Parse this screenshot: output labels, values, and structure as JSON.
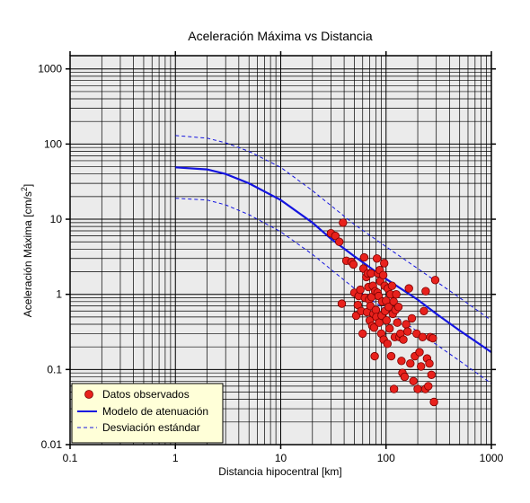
{
  "chart_data": {
    "type": "scatter",
    "title": "Aceleración Máxima vs Distancia",
    "xlabel": "Distancia hipocentral [km]",
    "ylabel_main": "Aceleración Máxima [cm/s",
    "ylabel_sup": "2",
    "ylabel_tail": "]",
    "x_scale": "log",
    "y_scale": "log",
    "xlim": [
      0.1,
      1000
    ],
    "ylim": [
      0.01,
      1500
    ],
    "grid": true,
    "background_color": "#ebebeb",
    "legend_placement": "bottom-left",
    "x_ticks": [
      {
        "value": 0.1,
        "label": "0.1"
      },
      {
        "value": 1,
        "label": "1"
      },
      {
        "value": 10,
        "label": "10"
      },
      {
        "value": 100,
        "label": "100"
      },
      {
        "value": 1000,
        "label": "1000"
      }
    ],
    "y_ticks": [
      {
        "value": 0.01,
        "label": "0.01"
      },
      {
        "value": 0.1,
        "label": "0.1"
      },
      {
        "value": 1,
        "label": "1"
      },
      {
        "value": 10,
        "label": "10"
      },
      {
        "value": 100,
        "label": "100"
      },
      {
        "value": 1000,
        "label": "1000"
      }
    ],
    "series": [
      {
        "name": "Datos observados",
        "kind": "scatter",
        "color": "#e8211c",
        "edge_color": "#7a0000",
        "points": [
          [
            30,
            6.5
          ],
          [
            33,
            6.0
          ],
          [
            36,
            5.0
          ],
          [
            38,
            0.75
          ],
          [
            39,
            9.0
          ],
          [
            42,
            2.8
          ],
          [
            47,
            2.7
          ],
          [
            49,
            2.5
          ],
          [
            50,
            1.05
          ],
          [
            52,
            0.52
          ],
          [
            54,
            0.72
          ],
          [
            55,
            0.95
          ],
          [
            57,
            1.15
          ],
          [
            58,
            0.6
          ],
          [
            60,
            0.3
          ],
          [
            61,
            2.2
          ],
          [
            62,
            3.1
          ],
          [
            63,
            0.9
          ],
          [
            65,
            1.7
          ],
          [
            66,
            0.58
          ],
          [
            67,
            1.9
          ],
          [
            68,
            1.25
          ],
          [
            69,
            0.85
          ],
          [
            70,
            0.45
          ],
          [
            71,
            0.7
          ],
          [
            72,
            1.9
          ],
          [
            73,
            0.92
          ],
          [
            74,
            0.38
          ],
          [
            75,
            1.3
          ],
          [
            76,
            0.55
          ],
          [
            77,
            0.36
          ],
          [
            78,
            0.15
          ],
          [
            79,
            1.1
          ],
          [
            80,
            0.62
          ],
          [
            81,
            0.5
          ],
          [
            82,
            3.0
          ],
          [
            83,
            1.05
          ],
          [
            84,
            1.9
          ],
          [
            85,
            0.95
          ],
          [
            86,
            0.42
          ],
          [
            87,
            2.1
          ],
          [
            88,
            1.5
          ],
          [
            90,
            0.3
          ],
          [
            91,
            0.52
          ],
          [
            92,
            0.8
          ],
          [
            94,
            1.8
          ],
          [
            95,
            0.25
          ],
          [
            96,
            2.6
          ],
          [
            97,
            1.3
          ],
          [
            98,
            0.6
          ],
          [
            100,
            0.82
          ],
          [
            101,
            0.45
          ],
          [
            103,
            0.22
          ],
          [
            104,
            1.2
          ],
          [
            106,
            0.68
          ],
          [
            108,
            0.35
          ],
          [
            110,
            1.0
          ],
          [
            112,
            0.15
          ],
          [
            114,
            1.3
          ],
          [
            116,
            0.55
          ],
          [
            118,
            0.8
          ],
          [
            119,
            0.055
          ],
          [
            121,
            0.27
          ],
          [
            123,
            0.62
          ],
          [
            125,
            1.0
          ],
          [
            128,
            0.42
          ],
          [
            131,
            0.68
          ],
          [
            134,
            0.27
          ],
          [
            137,
            0.3
          ],
          [
            140,
            0.13
          ],
          [
            143,
            0.09
          ],
          [
            146,
            0.25
          ],
          [
            150,
            0.08
          ],
          [
            155,
            0.4
          ],
          [
            160,
            0.32
          ],
          [
            165,
            1.2
          ],
          [
            170,
            0.12
          ],
          [
            176,
            0.48
          ],
          [
            182,
            0.07
          ],
          [
            188,
            0.15
          ],
          [
            195,
            0.3
          ],
          [
            200,
            0.055
          ],
          [
            208,
            0.17
          ],
          [
            215,
            0.11
          ],
          [
            222,
            0.27
          ],
          [
            229,
            0.6
          ],
          [
            236,
            0.055
          ],
          [
            238,
            1.1
          ],
          [
            245,
            0.14
          ],
          [
            252,
            0.06
          ],
          [
            258,
            0.12
          ],
          [
            263,
            0.27
          ],
          [
            270,
            0.085
          ],
          [
            278,
            0.26
          ],
          [
            285,
            0.037
          ],
          [
            293,
            1.55
          ]
        ]
      },
      {
        "name": "Modelo de atenuación",
        "kind": "line",
        "color": "#1414e0",
        "points": [
          [
            1,
            49
          ],
          [
            2,
            46
          ],
          [
            3,
            40
          ],
          [
            5,
            30
          ],
          [
            10,
            18
          ],
          [
            20,
            9.0
          ],
          [
            30,
            5.5
          ],
          [
            50,
            3.2
          ],
          [
            100,
            1.6
          ],
          [
            200,
            0.85
          ],
          [
            300,
            0.55
          ],
          [
            500,
            0.33
          ],
          [
            1000,
            0.17
          ]
        ]
      },
      {
        "name": "Desviación estándar",
        "kind": "dashed",
        "color": "#1414e0",
        "bands": [
          [
            [
              1,
              130
            ],
            [
              2,
              120
            ],
            [
              3,
              104
            ],
            [
              5,
              80
            ],
            [
              10,
              49
            ],
            [
              20,
              24
            ],
            [
              50,
              8.5
            ],
            [
              100,
              4.3
            ],
            [
              200,
              2.2
            ],
            [
              500,
              0.9
            ],
            [
              1000,
              0.45
            ]
          ],
          [
            [
              1,
              19
            ],
            [
              2,
              18
            ],
            [
              3,
              15.5
            ],
            [
              5,
              11.5
            ],
            [
              10,
              6.8
            ],
            [
              20,
              3.4
            ],
            [
              50,
              1.2
            ],
            [
              100,
              0.62
            ],
            [
              200,
              0.32
            ],
            [
              500,
              0.13
            ],
            [
              1000,
              0.065
            ]
          ]
        ]
      }
    ]
  }
}
